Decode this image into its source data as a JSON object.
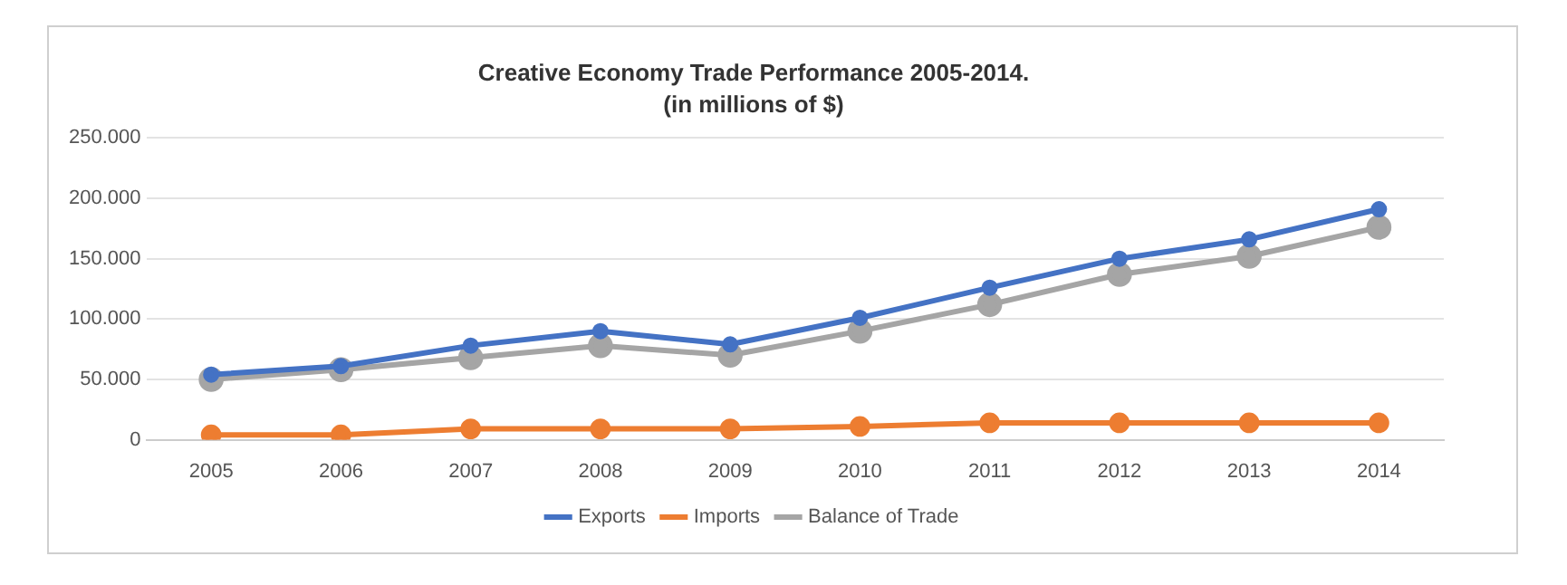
{
  "chart_data": {
    "type": "line",
    "title": "Creative Economy Trade Performance 2005-2014.",
    "subtitle": "(in millions of $)",
    "categories": [
      "2005",
      "2006",
      "2007",
      "2008",
      "2009",
      "2010",
      "2011",
      "2012",
      "2013",
      "2014"
    ],
    "series": [
      {
        "name": "Exports",
        "color": "#4472c4",
        "values": [
          54000,
          61000,
          78000,
          90000,
          79000,
          101000,
          126000,
          150000,
          166000,
          191000
        ]
      },
      {
        "name": "Imports",
        "color": "#ed7d31",
        "values": [
          4000,
          4000,
          9000,
          9000,
          9000,
          11000,
          14000,
          14000,
          14000,
          14000
        ]
      },
      {
        "name": "Balance of Trade",
        "color": "#a5a5a5",
        "values": [
          50000,
          58000,
          68000,
          78000,
          70000,
          90000,
          112000,
          137000,
          152000,
          176000
        ]
      }
    ],
    "ylim": [
      0,
      250000
    ],
    "yticks": [
      0,
      {
        "value": 50000,
        "label": "50.000"
      },
      {
        "value": 100000,
        "label": "100.000"
      },
      {
        "value": 150000,
        "label": "150.000"
      },
      {
        "value": 200000,
        "label": "200.000"
      },
      {
        "value": 250000,
        "label": "250.000"
      }
    ],
    "grid": "y",
    "legend": "bottom",
    "marker": "circle",
    "line_style": "solid"
  }
}
